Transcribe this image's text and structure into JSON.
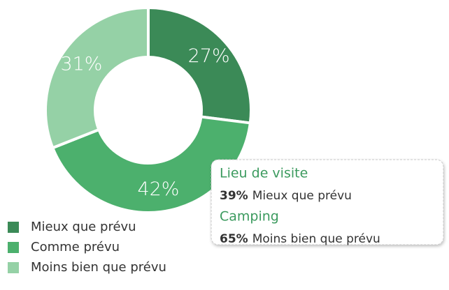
{
  "chart_data": {
    "type": "donut",
    "categories": [
      "Mieux que prévu",
      "Comme prévu",
      "Moins bien que prévu"
    ],
    "values": [
      27,
      42,
      31
    ],
    "value_labels": [
      "27%",
      "42%",
      "31%"
    ],
    "colors": [
      "#3b8a57",
      "#4cb06d",
      "#95d1a6"
    ],
    "legend": "bottom-left",
    "annotations": [
      {
        "title": "Lieu de visite",
        "label": "39%",
        "text": "Mieux que prévu"
      },
      {
        "title": "Camping",
        "label": "65%",
        "text": "Moins bien que prévu"
      }
    ]
  }
}
